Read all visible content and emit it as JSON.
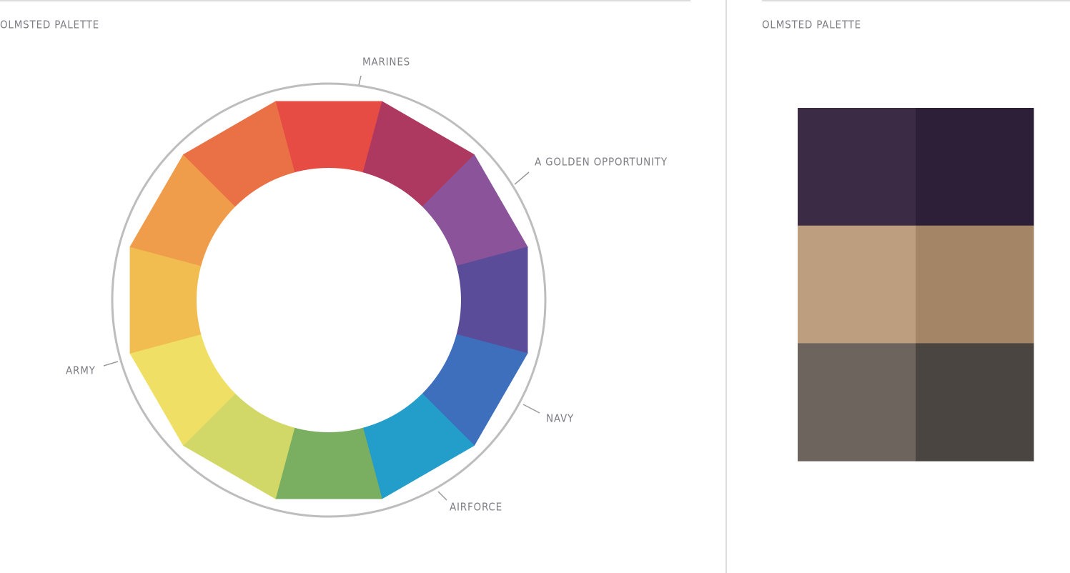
{
  "left": {
    "title": "OLMSTED PALETTE",
    "wheel": {
      "colors": [
        "#E64C43",
        "#AD3860",
        "#8B549A",
        "#5B4C9A",
        "#3D6FBD",
        "#239DCA",
        "#7AAF62",
        "#D1D867",
        "#EFE065",
        "#F1BC50",
        "#F09D4B",
        "#EA7046"
      ],
      "labels": [
        "MARINES",
        "A GOLDEN OPPORTUNITY",
        "NAVY",
        "AIRFORCE",
        "ARMY"
      ]
    }
  },
  "right": {
    "title": "OLMSTED PALETTE",
    "swatches": [
      [
        "#3B2B45",
        "#2D1F38"
      ],
      [
        "#BD9E7E",
        "#A48667"
      ],
      [
        "#6E645E",
        "#4A4541"
      ]
    ]
  }
}
